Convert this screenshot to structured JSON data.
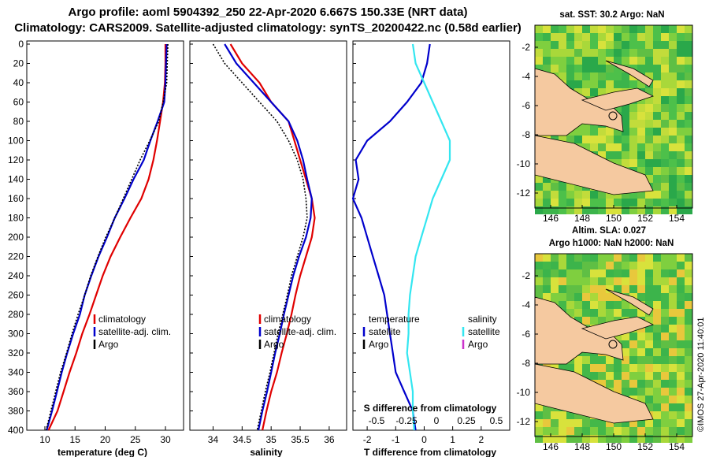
{
  "header": {
    "line1": "Argo profile: aoml 5904392_250 22-Apr-2020 6.667S 150.33E (NRT data)",
    "line2": "Climatology: CARS2009. Satellite-adjusted climatology: synTS_20200422.nc (0.58d earlier)"
  },
  "colors": {
    "climatology": "#e00000",
    "satellite": "#0000cc",
    "argo": "#000000",
    "sat_diff": "#33e6f0",
    "argo_sal": "#cc33cc",
    "land": "#f5c9a0",
    "ocean_green": "#3cb44b",
    "ocean_yellow": "#d8e23c"
  },
  "depth_axis": {
    "ylim": [
      0,
      400
    ],
    "ticks": [
      0,
      20,
      40,
      60,
      80,
      100,
      120,
      140,
      160,
      180,
      200,
      220,
      240,
      260,
      280,
      300,
      320,
      340,
      360,
      380,
      400
    ]
  },
  "chart_data": [
    {
      "type": "line",
      "id": "temperature",
      "xlabel": "temperature (deg C)",
      "xlim": [
        7,
        33
      ],
      "xticks": [
        10,
        15,
        20,
        25,
        30
      ],
      "ylim": [
        0,
        400
      ],
      "series": [
        {
          "name": "climatology",
          "color": "#e00000",
          "x": [
            30.0,
            30.0,
            29.9,
            29.6,
            29.1,
            28.6,
            28.0,
            27.2,
            26.0,
            24.2,
            22.5,
            20.9,
            19.6,
            18.5,
            17.4,
            16.2,
            15.2,
            14.1,
            13.1,
            12.1,
            10.6
          ],
          "y": [
            0,
            20,
            40,
            60,
            80,
            100,
            120,
            140,
            160,
            180,
            200,
            220,
            240,
            260,
            280,
            300,
            320,
            340,
            360,
            380,
            400
          ]
        },
        {
          "name": "satellite-adj. clim.",
          "color": "#0000cc",
          "x": [
            30.2,
            30.1,
            30.0,
            29.8,
            28.7,
            27.5,
            26.4,
            24.7,
            23.2,
            21.6,
            20.3,
            18.9,
            17.7,
            16.6,
            15.8,
            14.7,
            13.7,
            12.8,
            12.0,
            11.2,
            10.3
          ],
          "y": [
            0,
            20,
            40,
            60,
            80,
            100,
            120,
            140,
            160,
            180,
            200,
            220,
            240,
            260,
            280,
            300,
            320,
            340,
            360,
            380,
            400
          ]
        },
        {
          "name": "Argo",
          "color": "#000000",
          "dash": true,
          "x": [
            30.4,
            30.3,
            30.2,
            29.6,
            28.9,
            27.4,
            25.8,
            24.4,
            23.0,
            21.6,
            20.1,
            18.8,
            17.6,
            16.6,
            15.5,
            14.5,
            13.6,
            12.6,
            11.8,
            11.0,
            10.2
          ],
          "y": [
            0,
            20,
            40,
            60,
            80,
            100,
            120,
            140,
            160,
            180,
            200,
            220,
            240,
            260,
            280,
            300,
            320,
            340,
            360,
            380,
            400
          ]
        }
      ],
      "legend": [
        "climatology",
        "satellite-adj. clim.",
        "Argo"
      ]
    },
    {
      "type": "line",
      "id": "salinity",
      "xlabel": "salinity",
      "xlim": [
        33.6,
        36.3
      ],
      "xticks": [
        34,
        34.5,
        35,
        35.5,
        36
      ],
      "xtick_labels": [
        "34",
        "34.5",
        "35",
        "35.5",
        "36"
      ],
      "ylim": [
        0,
        400
      ],
      "series": [
        {
          "name": "climatology",
          "color": "#e00000",
          "x": [
            34.3,
            34.5,
            34.8,
            35.0,
            35.3,
            35.4,
            35.5,
            35.6,
            35.7,
            35.75,
            35.7,
            35.6,
            35.5,
            35.42,
            35.35,
            35.27,
            35.18,
            35.1,
            35.0,
            34.92,
            34.85
          ],
          "y": [
            0,
            20,
            40,
            60,
            80,
            100,
            120,
            140,
            160,
            180,
            200,
            220,
            240,
            260,
            280,
            300,
            320,
            340,
            360,
            380,
            400
          ]
        },
        {
          "name": "satellite-adj. clim.",
          "color": "#0000cc",
          "x": [
            34.2,
            34.4,
            34.7,
            35.0,
            35.3,
            35.45,
            35.55,
            35.62,
            35.7,
            35.68,
            35.6,
            35.48,
            35.38,
            35.3,
            35.22,
            35.15,
            35.07,
            35.0,
            34.93,
            34.85,
            34.78
          ],
          "y": [
            0,
            20,
            40,
            60,
            80,
            100,
            120,
            140,
            160,
            180,
            200,
            220,
            240,
            260,
            280,
            300,
            320,
            340,
            360,
            380,
            400
          ]
        },
        {
          "name": "Argo",
          "color": "#000000",
          "dash": true,
          "x": [
            34.0,
            34.2,
            34.5,
            34.8,
            35.1,
            35.3,
            35.45,
            35.55,
            35.6,
            35.62,
            35.55,
            35.45,
            35.35,
            35.28,
            35.2,
            35.12,
            35.05,
            34.98,
            34.9,
            34.83,
            34.76
          ],
          "y": [
            0,
            20,
            40,
            60,
            80,
            100,
            120,
            140,
            160,
            180,
            200,
            220,
            240,
            260,
            280,
            300,
            320,
            340,
            360,
            380,
            400
          ]
        }
      ],
      "legend": [
        "climatology",
        "satellite-adj. clim.",
        "Argo"
      ]
    },
    {
      "type": "line",
      "id": "difference",
      "xlabel": "T difference from climatology",
      "xlim": [
        -2.5,
        3
      ],
      "xticks": [
        -2,
        -1,
        0,
        1,
        2
      ],
      "xtick_labels": [
        "-2",
        "-1",
        "0",
        "1",
        "2"
      ],
      "top_label": "S difference from climatology",
      "s_ticks_labels": [
        "-0.5",
        "-0.25",
        "0",
        "0.25",
        "0.5"
      ],
      "ylim": [
        0,
        400
      ],
      "series": [
        {
          "name": "temperature satellite",
          "color": "#0000cc",
          "x": [
            0.2,
            0.1,
            -0.1,
            -0.6,
            -1.2,
            -2.0,
            -2.4,
            -2.3,
            -2.5,
            -2.2,
            -2.0,
            -1.8,
            -1.6,
            -1.4,
            -1.3,
            -1.2,
            -1.1,
            -1.0,
            -0.7,
            -0.4,
            -0.3
          ],
          "y": [
            0,
            20,
            40,
            60,
            80,
            100,
            120,
            140,
            160,
            180,
            200,
            220,
            240,
            260,
            280,
            300,
            320,
            340,
            360,
            380,
            400
          ]
        },
        {
          "name": "salinity satellite",
          "color": "#33e6f0",
          "x": [
            -0.4,
            -0.3,
            0.0,
            0.3,
            0.6,
            0.9,
            0.9,
            0.6,
            0.3,
            0.1,
            -0.1,
            -0.3,
            -0.4,
            -0.5,
            -0.55,
            -0.55,
            -0.6,
            -0.5,
            -0.4,
            -0.4,
            -0.35
          ],
          "y": [
            0,
            20,
            40,
            60,
            80,
            100,
            120,
            140,
            160,
            180,
            200,
            220,
            240,
            260,
            280,
            300,
            320,
            340,
            360,
            380,
            400
          ]
        }
      ],
      "legend_titles": [
        "temperature",
        "salinity"
      ],
      "legend_left": [
        "satellite",
        "Argo"
      ],
      "legend_right": [
        "satellite",
        "Argo"
      ]
    }
  ],
  "maps": [
    {
      "title": "sat. SST: 30.2 Argo: NaN",
      "xticks": [
        "146",
        "148",
        "150",
        "152",
        "154"
      ],
      "yticks": [
        "-2",
        "-4",
        "-6",
        "-8",
        "-10",
        "-12"
      ]
    },
    {
      "title_line1": "Altim. SLA: 0.027",
      "title_line2": "Argo h1000: NaN h2000: NaN",
      "xticks": [
        "146",
        "148",
        "150",
        "152",
        "154"
      ],
      "yticks": [
        "-2",
        "-4",
        "-6",
        "-8",
        "-10",
        "-12"
      ]
    }
  ],
  "credit": "©IMOS 27-Apr-2020 11:40:01"
}
